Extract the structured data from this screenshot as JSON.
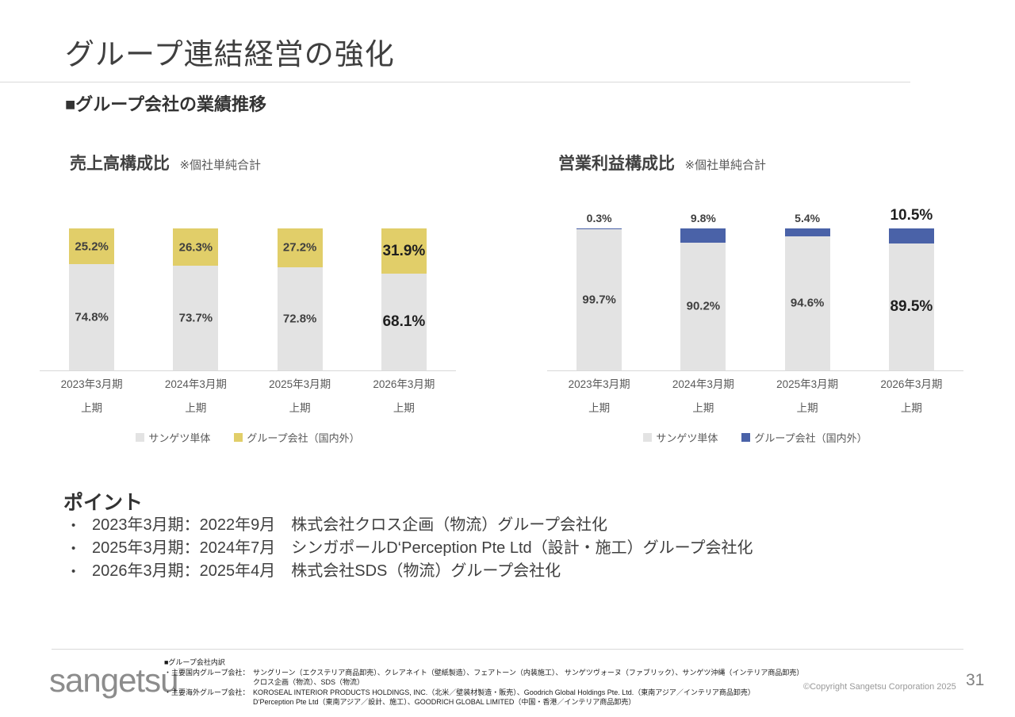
{
  "slide": {
    "title": "グループ連結経営の強化",
    "section_heading": "■グループ会社の業績推移",
    "page_number": "31",
    "copyright": "©Copyright Sangetsu Corporation 2025",
    "logo_text": "sangetsu"
  },
  "colors": {
    "sangetsu_gray": "#e3e3e3",
    "group_yellow": "#e1ce69",
    "group_blue": "#4a62a8",
    "axis_line": "#d9d9d9"
  },
  "chart_data": [
    {
      "type": "bar",
      "stacked": true,
      "title": "売上高構成比",
      "note": "※個社単純合計",
      "categories": [
        "2023年3月期 上期",
        "2024年3月期 上期",
        "2025年3月期 上期",
        "2026年3月期 上期"
      ],
      "series": [
        {
          "name": "サンゲツ単体",
          "color": "#e3e3e3",
          "values": [
            74.8,
            73.7,
            72.8,
            68.1
          ]
        },
        {
          "name": "グループ会社（国内外）",
          "color": "#e1ce69",
          "values": [
            25.2,
            26.3,
            27.2,
            31.9
          ]
        }
      ],
      "unit": "%",
      "ylim": [
        0,
        100
      ],
      "grid": false,
      "legend_position": "bottom",
      "top_label_position": "inside",
      "emphasize_last": true
    },
    {
      "type": "bar",
      "stacked": true,
      "title": "営業利益構成比",
      "note": "※個社単純合計",
      "categories": [
        "2023年3月期 上期",
        "2024年3月期 上期",
        "2025年3月期 上期",
        "2026年3月期 上期"
      ],
      "series": [
        {
          "name": "サンゲツ単体",
          "color": "#e3e3e3",
          "values": [
            99.7,
            90.2,
            94.6,
            89.5
          ]
        },
        {
          "name": "グループ会社（国内外）",
          "color": "#4a62a8",
          "values": [
            0.3,
            9.8,
            5.4,
            10.5
          ]
        }
      ],
      "unit": "%",
      "ylim": [
        0,
        100
      ],
      "grid": false,
      "legend_position": "bottom",
      "top_label_position": "above",
      "emphasize_last": true
    }
  ],
  "points": {
    "heading": "ポイント",
    "bullet": "•",
    "items": [
      "2023年3月期：2022年9月　株式会社クロス企画（物流）グループ会社化",
      "2025年3月期：2024年7月　シンガポールD‘Perception Pte Ltd（設計・施工）グループ会社化",
      "2026年3月期：2025年4月　株式会社SDS（物流）グループ会社化"
    ]
  },
  "footer": {
    "note_heading": "■グループ会社内訳",
    "rows": [
      {
        "label": "・主要国内グループ会社：",
        "text": "サングリーン（エクステリア商品卸売）、クレアネイト（壁紙製造）、フェアトーン（内装施工）、 サンゲツヴォーヌ（ファブリック）、サンゲツ沖縄（インテリア商品卸売）"
      },
      {
        "label": "",
        "text": "クロス企画（物流）、SDS（物流）"
      },
      {
        "label": "・主要海外グループ会社：",
        "text": "KOROSEAL INTERIOR PRODUCTS HOLDINGS, INC.（北米／壁装材製造・販売）、Goodrich Global Holdings Pte. Ltd.（東南アジア／インテリア商品卸売）"
      },
      {
        "label": "",
        "text": "D‘Perception Pte Ltd（東南アジア／設計、施工）、GOODRICH GLOBAL LIMITED（中国・香港／インテリア商品卸売）"
      }
    ]
  }
}
